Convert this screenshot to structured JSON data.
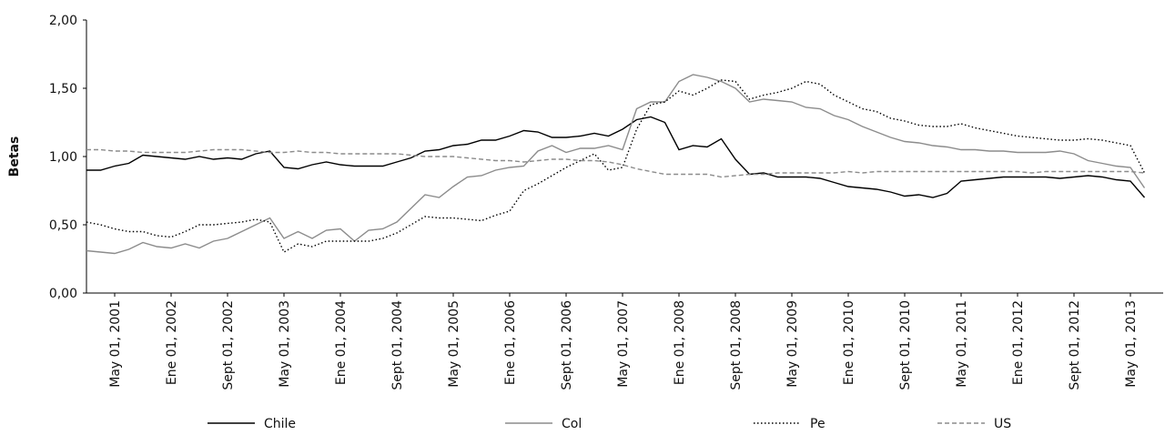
{
  "chart_data": {
    "type": "line",
    "ylabel": "Betas",
    "categories": [
      null,
      null,
      "May 01, 2001",
      null,
      null,
      null,
      "Ene 01, 2002",
      null,
      null,
      null,
      "Sept 01, 2002",
      null,
      null,
      null,
      "May 01, 2003",
      null,
      null,
      null,
      "Ene 01, 2004",
      null,
      null,
      null,
      "Sept 01, 2004",
      null,
      null,
      null,
      "May 01, 2005",
      null,
      null,
      null,
      "Ene 01, 2006",
      null,
      null,
      null,
      "Sept 01, 2006",
      null,
      null,
      null,
      "May 01, 2007",
      null,
      null,
      null,
      "Ene 01, 2008",
      null,
      null,
      null,
      "Sept 01, 2008",
      null,
      null,
      null,
      "May 01, 2009",
      null,
      null,
      null,
      "Ene 01, 2010",
      null,
      null,
      null,
      "Sept 01, 2010",
      null,
      null,
      null,
      "May 01, 2011",
      null,
      null,
      null,
      "Ene 01, 2012",
      null,
      null,
      null,
      "Sept 01, 2012",
      null,
      null,
      null,
      "May 01, 2013",
      null
    ],
    "series": [
      {
        "name": "Chile",
        "color": "#000000",
        "style": "solid",
        "values": [
          0.9,
          0.9,
          0.93,
          0.95,
          1.01,
          1.0,
          0.99,
          0.98,
          1.0,
          0.98,
          0.99,
          0.98,
          1.02,
          1.04,
          0.92,
          0.91,
          0.94,
          0.96,
          0.94,
          0.93,
          0.93,
          0.93,
          0.96,
          0.99,
          1.04,
          1.05,
          1.08,
          1.09,
          1.12,
          1.12,
          1.15,
          1.19,
          1.18,
          1.14,
          1.14,
          1.15,
          1.17,
          1.15,
          1.2,
          1.27,
          1.29,
          1.25,
          1.05,
          1.08,
          1.07,
          1.13,
          0.98,
          0.87,
          0.88,
          0.85,
          0.85,
          0.85,
          0.84,
          0.81,
          0.78,
          0.77,
          0.76,
          0.74,
          0.71,
          0.72,
          0.7,
          0.73,
          0.82,
          0.83,
          0.84,
          0.85,
          0.85,
          0.85,
          0.85,
          0.84,
          0.85,
          0.86,
          0.85,
          0.83,
          0.82,
          0.7
        ]
      },
      {
        "name": "Col",
        "color": "#8c8c8c",
        "style": "solid",
        "values": [
          0.31,
          0.3,
          0.29,
          0.32,
          0.37,
          0.34,
          0.33,
          0.36,
          0.33,
          0.38,
          0.4,
          0.45,
          0.5,
          0.55,
          0.4,
          0.45,
          0.4,
          0.46,
          0.47,
          0.38,
          0.46,
          0.47,
          0.52,
          0.62,
          0.72,
          0.7,
          0.78,
          0.85,
          0.86,
          0.9,
          0.92,
          0.93,
          1.04,
          1.08,
          1.03,
          1.06,
          1.06,
          1.08,
          1.05,
          1.35,
          1.4,
          1.4,
          1.55,
          1.6,
          1.58,
          1.55,
          1.5,
          1.4,
          1.42,
          1.41,
          1.4,
          1.36,
          1.35,
          1.3,
          1.27,
          1.22,
          1.18,
          1.14,
          1.11,
          1.1,
          1.08,
          1.07,
          1.05,
          1.05,
          1.04,
          1.04,
          1.03,
          1.03,
          1.03,
          1.04,
          1.02,
          0.97,
          0.95,
          0.93,
          0.92,
          0.77
        ]
      },
      {
        "name": "Pe",
        "color": "#000000",
        "style": "dotted",
        "values": [
          0.52,
          0.5,
          0.47,
          0.45,
          0.45,
          0.42,
          0.41,
          0.45,
          0.5,
          0.5,
          0.51,
          0.52,
          0.54,
          0.52,
          0.3,
          0.36,
          0.34,
          0.38,
          0.38,
          0.38,
          0.38,
          0.4,
          0.44,
          0.5,
          0.56,
          0.55,
          0.55,
          0.54,
          0.53,
          0.57,
          0.6,
          0.75,
          0.8,
          0.86,
          0.92,
          0.97,
          1.02,
          0.9,
          0.92,
          1.2,
          1.38,
          1.4,
          1.48,
          1.45,
          1.5,
          1.56,
          1.55,
          1.42,
          1.45,
          1.47,
          1.5,
          1.55,
          1.53,
          1.45,
          1.4,
          1.35,
          1.33,
          1.28,
          1.26,
          1.23,
          1.22,
          1.22,
          1.24,
          1.21,
          1.19,
          1.17,
          1.15,
          1.14,
          1.13,
          1.12,
          1.12,
          1.13,
          1.12,
          1.1,
          1.08,
          0.88
        ]
      },
      {
        "name": "US",
        "color": "#8c8c8c",
        "style": "dashed",
        "values": [
          1.05,
          1.05,
          1.04,
          1.04,
          1.03,
          1.03,
          1.03,
          1.03,
          1.04,
          1.05,
          1.05,
          1.05,
          1.04,
          1.03,
          1.03,
          1.04,
          1.03,
          1.03,
          1.02,
          1.02,
          1.02,
          1.02,
          1.02,
          1.01,
          1.0,
          1.0,
          1.0,
          0.99,
          0.98,
          0.97,
          0.97,
          0.96,
          0.97,
          0.98,
          0.98,
          0.97,
          0.97,
          0.96,
          0.94,
          0.91,
          0.89,
          0.87,
          0.87,
          0.87,
          0.87,
          0.85,
          0.86,
          0.87,
          0.87,
          0.88,
          0.88,
          0.88,
          0.88,
          0.88,
          0.89,
          0.88,
          0.89,
          0.89,
          0.89,
          0.89,
          0.89,
          0.89,
          0.89,
          0.89,
          0.89,
          0.89,
          0.89,
          0.88,
          0.89,
          0.89,
          0.89,
          0.89,
          0.89,
          0.89,
          0.89,
          0.88
        ]
      }
    ],
    "ylim": [
      0,
      2
    ],
    "yticks": [
      {
        "value": 0,
        "label": "0,00"
      },
      {
        "value": 0.5,
        "label": "0,50"
      },
      {
        "value": 1,
        "label": "1,00"
      },
      {
        "value": 1.5,
        "label": "1,50"
      },
      {
        "value": 2,
        "label": "2,00"
      }
    ],
    "grid": false,
    "legend": "bottom"
  }
}
